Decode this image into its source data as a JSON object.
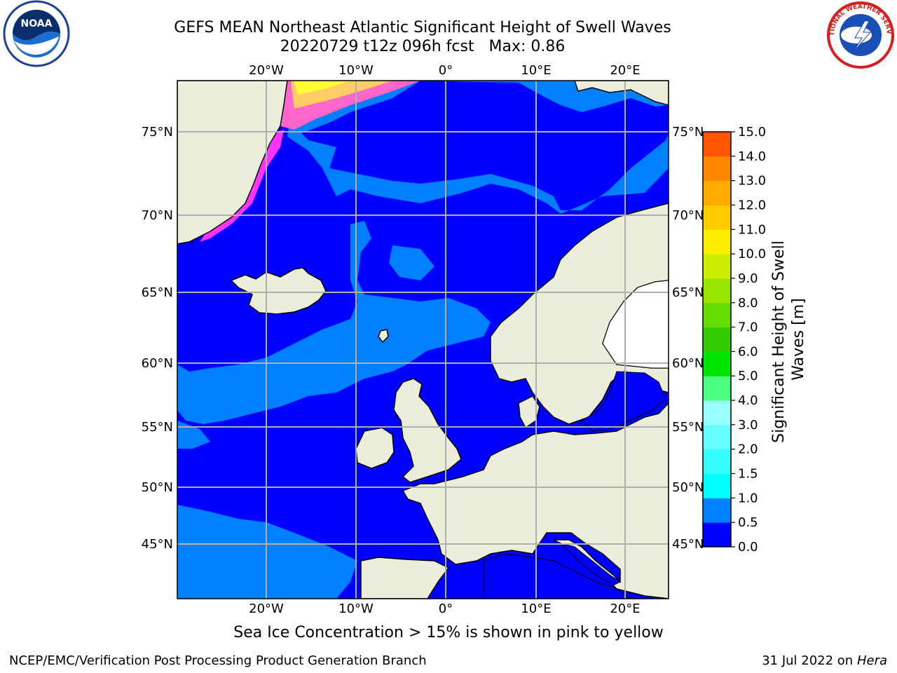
{
  "header": {
    "title_line1": "GEFS MEAN Northeast Atlantic Significant Height of Swell Waves",
    "title_line2": "20220729 t12z 096h fcst   Max: 0.86"
  },
  "logos": {
    "left": {
      "icon": "noaa-logo",
      "text": "NOAA"
    },
    "right": {
      "icon": "nws-logo",
      "text": "NATIONAL WEATHER SERVICE"
    }
  },
  "map": {
    "lon_labels": [
      "20°W",
      "10°W",
      "0°",
      "10°E",
      "20°E"
    ],
    "lat_labels_left": [
      "75°N",
      "70°N",
      "65°N",
      "60°N",
      "55°N",
      "50°N",
      "45°N"
    ],
    "lat_labels_right": [
      "75°N",
      "70°N",
      "65°N",
      "60°N",
      "55°N",
      "50°N",
      "45°N"
    ],
    "colors": {
      "land": "#ededdc",
      "ocean_low": "#0000ff",
      "ocean_mid": "#0080ff",
      "ice": [
        "#ff33ff",
        "#ff66cc",
        "#ff99aa",
        "#ffcc66",
        "#ffff33"
      ],
      "grid": "#b0b0b0"
    }
  },
  "colorbar": {
    "label": "Significant Height of Swell Waves [m]",
    "ticks": [
      "0.0",
      "0.5",
      "1.0",
      "1.5",
      "2.0",
      "3.0",
      "4.0",
      "5.0",
      "6.0",
      "7.0",
      "8.0",
      "9.0",
      "10.0",
      "11.0",
      "12.0",
      "13.0",
      "14.0",
      "15.0"
    ],
    "colors": [
      "#0000ff",
      "#0080ff",
      "#00ffff",
      "#33ffff",
      "#66ffff",
      "#99ffff",
      "#4dff80",
      "#00e600",
      "#33cc00",
      "#66dd00",
      "#99e600",
      "#ccee00",
      "#ffee00",
      "#ffcc00",
      "#ffaa00",
      "#ff8800",
      "#ff5500",
      "#ff2200"
    ]
  },
  "footer": {
    "ice_note": "Sea Ice Concentration > 15% is shown in pink to yellow",
    "left": "NCEP/EMC/Verification Post Processing Product Generation Branch",
    "date": "31 Jul 2022 on ",
    "machine": "Hera"
  }
}
